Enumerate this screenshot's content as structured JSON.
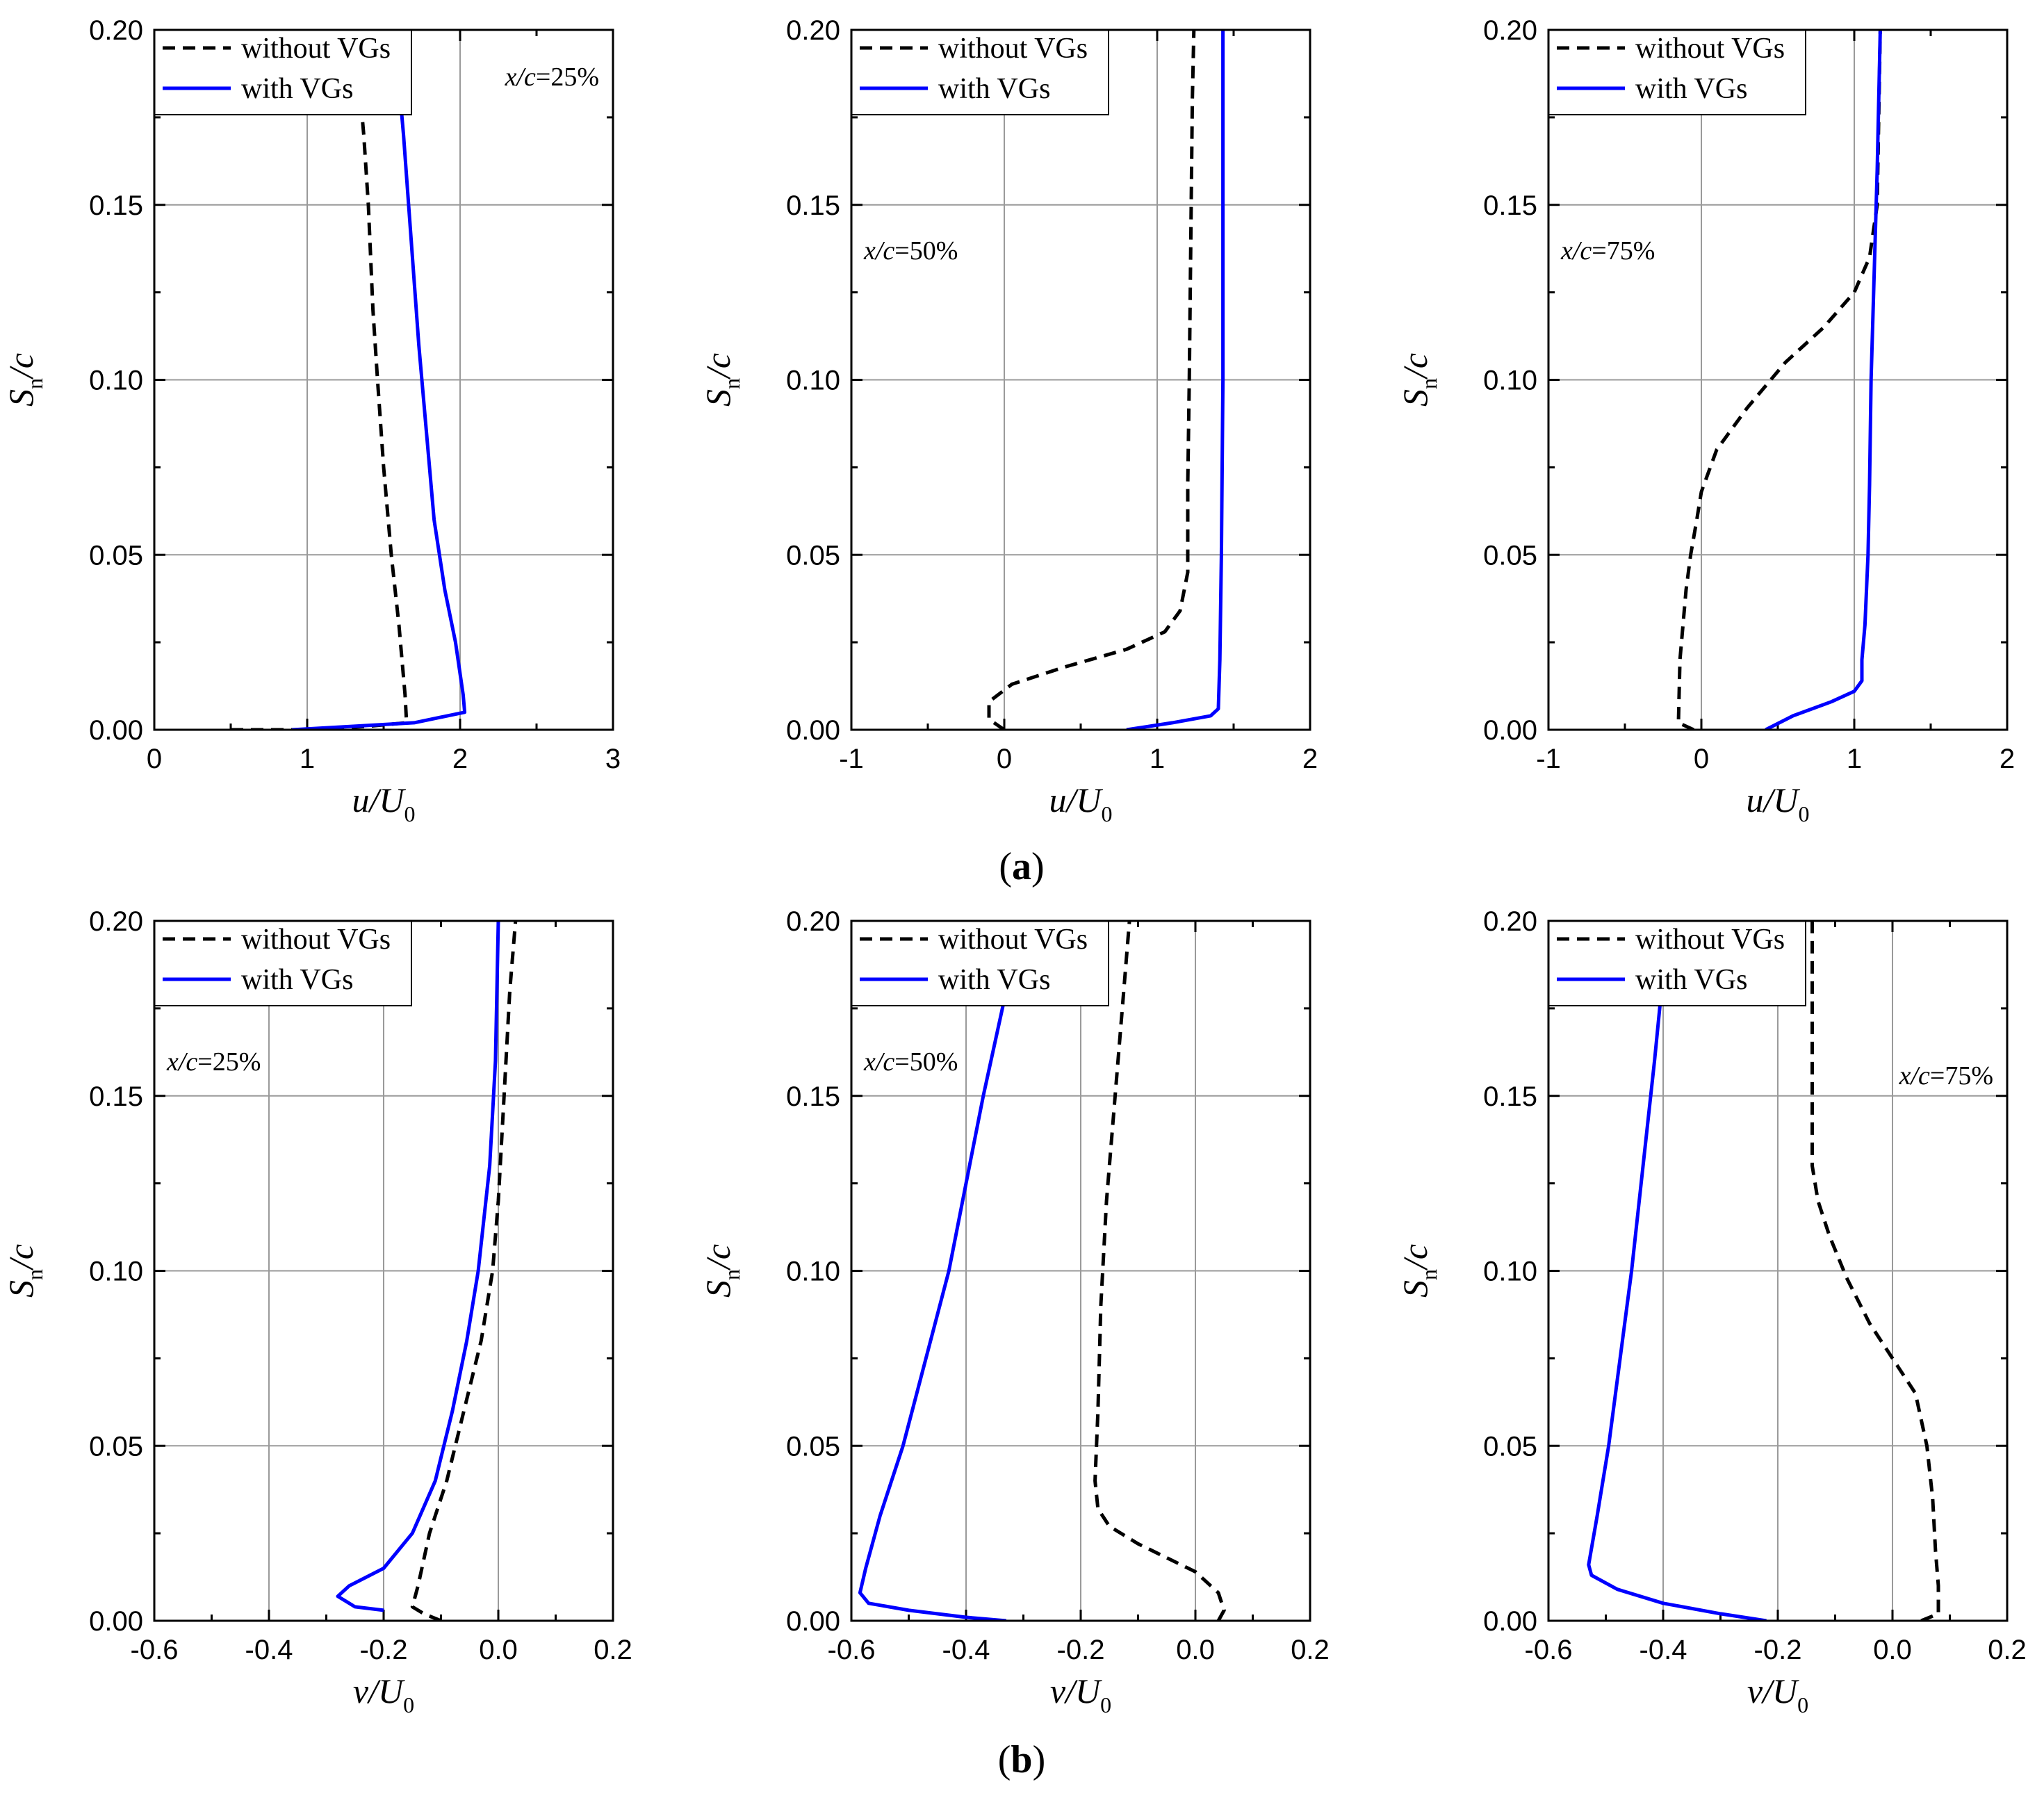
{
  "figure": {
    "row_labels": [
      {
        "open": "(",
        "letter": "a",
        "close": ")"
      },
      {
        "open": "(",
        "letter": "b",
        "close": ")"
      }
    ]
  },
  "chart_data": [
    {
      "type": "line",
      "row": "a",
      "col": 0,
      "xlabel": {
        "var": "u",
        "sep": "/U",
        "sub": "0"
      },
      "ylabel": {
        "var": "S",
        "sub": "n",
        "tail": "/c"
      },
      "xlim": [
        0,
        3
      ],
      "xticks": [
        0,
        1,
        2,
        3
      ],
      "xtick_labels": [
        "0",
        "1",
        "2",
        "3"
      ],
      "ylim": [
        0,
        0.2
      ],
      "yticks": [
        0,
        0.05,
        0.1,
        0.15,
        0.2
      ],
      "ytick_labels": [
        "0.00",
        "0.05",
        "0.10",
        "0.15",
        "0.20"
      ],
      "grid": true,
      "legend_position": "top-left",
      "annotation": {
        "var": "x/c",
        "text": "=25%",
        "position": "top-right"
      },
      "series": [
        {
          "name": "without VGs",
          "style": "dashed",
          "color": "#000000",
          "x": [
            0.5,
            1.0,
            1.4,
            1.65,
            1.64,
            1.6,
            1.55,
            1.5,
            1.46,
            1.43,
            1.4,
            1.37,
            1.34
          ],
          "y": [
            0.0,
            0.0,
            0.001,
            0.002,
            0.01,
            0.03,
            0.05,
            0.075,
            0.1,
            0.12,
            0.15,
            0.17,
            0.185
          ]
        },
        {
          "name": "with VGs",
          "style": "solid",
          "color": "#0000ff",
          "x": [
            0.9,
            1.3,
            1.7,
            2.03,
            2.02,
            1.97,
            1.9,
            1.83,
            1.78,
            1.73,
            1.68,
            1.63,
            1.6
          ],
          "y": [
            0.0,
            0.001,
            0.002,
            0.005,
            0.01,
            0.025,
            0.04,
            0.06,
            0.085,
            0.11,
            0.14,
            0.17,
            0.185
          ]
        }
      ]
    },
    {
      "type": "line",
      "row": "a",
      "col": 1,
      "xlabel": {
        "var": "u",
        "sep": "/U",
        "sub": "0"
      },
      "ylabel": {
        "var": "S",
        "sub": "n",
        "tail": "/c"
      },
      "xlim": [
        -1,
        2
      ],
      "xticks": [
        -1,
        0,
        1,
        2
      ],
      "xtick_labels": [
        "-1",
        "0",
        "1",
        "2"
      ],
      "ylim": [
        0,
        0.2
      ],
      "yticks": [
        0,
        0.05,
        0.1,
        0.15,
        0.2
      ],
      "ytick_labels": [
        "0.00",
        "0.05",
        "0.10",
        "0.15",
        "0.20"
      ],
      "grid": true,
      "legend_position": "top-left",
      "annotation": {
        "var": "x/c",
        "text": "=50%",
        "position": "upper-left"
      },
      "series": [
        {
          "name": "without VGs",
          "style": "dashed",
          "color": "#000000",
          "x": [
            0.0,
            -0.1,
            -0.1,
            0.05,
            0.4,
            0.8,
            1.05,
            1.15,
            1.2,
            1.2,
            1.21,
            1.22,
            1.23,
            1.24
          ],
          "y": [
            0.0,
            0.003,
            0.008,
            0.013,
            0.018,
            0.023,
            0.028,
            0.034,
            0.045,
            0.07,
            0.1,
            0.14,
            0.18,
            0.2
          ]
        },
        {
          "name": "with VGs",
          "style": "solid",
          "color": "#0000ff",
          "x": [
            0.8,
            1.1,
            1.35,
            1.4,
            1.41,
            1.42,
            1.43,
            1.43,
            1.43
          ],
          "y": [
            0.0,
            0.002,
            0.004,
            0.006,
            0.02,
            0.05,
            0.1,
            0.15,
            0.2
          ]
        }
      ]
    },
    {
      "type": "line",
      "row": "a",
      "col": 2,
      "xlabel": {
        "var": "u",
        "sep": "/U",
        "sub": "0"
      },
      "ylabel": {
        "var": "S",
        "sub": "n",
        "tail": "/c"
      },
      "xlim": [
        -1,
        2
      ],
      "xticks": [
        -1,
        0,
        1,
        2
      ],
      "xtick_labels": [
        "-1",
        "0",
        "1",
        "2"
      ],
      "ylim": [
        0,
        0.2
      ],
      "yticks": [
        0,
        0.05,
        0.1,
        0.15,
        0.2
      ],
      "ytick_labels": [
        "0.00",
        "0.05",
        "0.10",
        "0.15",
        "0.20"
      ],
      "grid": true,
      "legend_position": "top-left",
      "annotation": {
        "var": "x/c",
        "text": "=75%",
        "position": "upper-left"
      },
      "series": [
        {
          "name": "without VGs",
          "style": "dashed",
          "color": "#000000",
          "x": [
            -0.05,
            -0.15,
            -0.14,
            -0.1,
            -0.07,
            -0.03,
            0.0,
            0.1,
            0.3,
            0.55,
            0.8,
            1.0,
            1.1,
            1.15,
            1.17
          ],
          "y": [
            0.0,
            0.002,
            0.02,
            0.04,
            0.05,
            0.06,
            0.068,
            0.08,
            0.092,
            0.105,
            0.115,
            0.125,
            0.135,
            0.15,
            0.2
          ]
        },
        {
          "name": "with VGs",
          "style": "solid",
          "color": "#0000ff",
          "x": [
            0.42,
            0.6,
            0.85,
            1.0,
            1.05,
            1.05,
            1.07,
            1.09,
            1.1,
            1.11,
            1.13,
            1.15,
            1.17
          ],
          "y": [
            0.0,
            0.004,
            0.008,
            0.011,
            0.014,
            0.02,
            0.03,
            0.05,
            0.07,
            0.1,
            0.13,
            0.16,
            0.2
          ]
        }
      ]
    },
    {
      "type": "line",
      "row": "b",
      "col": 0,
      "xlabel": {
        "var": "v",
        "sep": "/U",
        "sub": "0"
      },
      "ylabel": {
        "var": "S",
        "sub": "n",
        "tail": "/c"
      },
      "xlim": [
        -0.6,
        0.2
      ],
      "xticks": [
        -0.6,
        -0.4,
        -0.2,
        0.0,
        0.2
      ],
      "xtick_labels": [
        "-0.6",
        "-0.4",
        "-0.2",
        "0.0",
        "0.2"
      ],
      "ylim": [
        0,
        0.2
      ],
      "yticks": [
        0,
        0.05,
        0.1,
        0.15,
        0.2
      ],
      "ytick_labels": [
        "0.00",
        "0.05",
        "0.10",
        "0.15",
        "0.20"
      ],
      "grid": true,
      "legend_position": "top-left",
      "annotation": {
        "var": "x/c",
        "text": "=25%",
        "position": "upper-left"
      },
      "series": [
        {
          "name": "without VGs",
          "style": "dashed",
          "color": "#000000",
          "x": [
            -0.1,
            -0.13,
            -0.15,
            -0.14,
            -0.12,
            -0.09,
            -0.06,
            -0.03,
            -0.01,
            0.0,
            0.01,
            0.02,
            0.03
          ],
          "y": [
            0.0,
            0.002,
            0.004,
            0.01,
            0.025,
            0.04,
            0.06,
            0.08,
            0.1,
            0.12,
            0.15,
            0.18,
            0.2
          ]
        },
        {
          "name": "with VGs",
          "style": "solid",
          "color": "#0000ff",
          "x": [
            -0.2,
            -0.25,
            -0.28,
            -0.26,
            -0.2,
            -0.15,
            -0.11,
            -0.08,
            -0.055,
            -0.035,
            -0.015,
            -0.005,
            0.0
          ],
          "y": [
            0.003,
            0.004,
            0.007,
            0.01,
            0.015,
            0.025,
            0.04,
            0.06,
            0.08,
            0.1,
            0.13,
            0.16,
            0.2
          ]
        }
      ]
    },
    {
      "type": "line",
      "row": "b",
      "col": 1,
      "xlabel": {
        "var": "v",
        "sep": "/U",
        "sub": "0"
      },
      "ylabel": {
        "var": "S",
        "sub": "n",
        "tail": "/c"
      },
      "xlim": [
        -0.6,
        0.2
      ],
      "xticks": [
        -0.6,
        -0.4,
        -0.2,
        0.0,
        0.2
      ],
      "xtick_labels": [
        "-0.6",
        "-0.4",
        "-0.2",
        "0.0",
        "0.2"
      ],
      "ylim": [
        0,
        0.2
      ],
      "yticks": [
        0,
        0.05,
        0.1,
        0.15,
        0.2
      ],
      "ytick_labels": [
        "0.00",
        "0.05",
        "0.10",
        "0.15",
        "0.20"
      ],
      "grid": true,
      "legend_position": "top-left",
      "annotation": {
        "var": "x/c",
        "text": "=50%",
        "position": "upper-left"
      },
      "series": [
        {
          "name": "without VGs",
          "style": "dashed",
          "color": "#000000",
          "x": [
            0.04,
            0.05,
            0.04,
            0.0,
            -0.05,
            -0.1,
            -0.15,
            -0.17,
            -0.175,
            -0.17,
            -0.165,
            -0.155,
            -0.14,
            -0.125,
            -0.115
          ],
          "y": [
            0.0,
            0.003,
            0.008,
            0.014,
            0.018,
            0.022,
            0.027,
            0.032,
            0.04,
            0.06,
            0.09,
            0.12,
            0.15,
            0.18,
            0.2
          ]
        },
        {
          "name": "with VGs",
          "style": "solid",
          "color": "#0000ff",
          "x": [
            -0.33,
            -0.4,
            -0.5,
            -0.57,
            -0.585,
            -0.575,
            -0.55,
            -0.51,
            -0.47,
            -0.43,
            -0.4,
            -0.37,
            -0.33
          ],
          "y": [
            0.0,
            0.001,
            0.003,
            0.005,
            0.008,
            0.015,
            0.03,
            0.05,
            0.075,
            0.1,
            0.125,
            0.15,
            0.18
          ]
        }
      ]
    },
    {
      "type": "line",
      "row": "b",
      "col": 2,
      "xlabel": {
        "var": "v",
        "sep": "/U",
        "sub": "0"
      },
      "ylabel": {
        "var": "S",
        "sub": "n",
        "tail": "/c"
      },
      "xlim": [
        -0.6,
        0.2
      ],
      "xticks": [
        -0.6,
        -0.4,
        -0.2,
        0.0,
        0.2
      ],
      "xtick_labels": [
        "-0.6",
        "-0.4",
        "-0.2",
        "0.0",
        "0.2"
      ],
      "ylim": [
        0,
        0.2
      ],
      "yticks": [
        0,
        0.05,
        0.1,
        0.15,
        0.2
      ],
      "ytick_labels": [
        "0.00",
        "0.05",
        "0.10",
        "0.15",
        "0.20"
      ],
      "grid": true,
      "legend_position": "top-left",
      "annotation": {
        "var": "x/c",
        "text": "=75%",
        "position": "top-right"
      },
      "series": [
        {
          "name": "without VGs",
          "style": "dashed",
          "color": "#000000",
          "x": [
            0.05,
            0.08,
            0.08,
            0.075,
            0.07,
            0.06,
            0.04,
            0.0,
            -0.04,
            -0.08,
            -0.11,
            -0.13,
            -0.14,
            -0.14,
            -0.14
          ],
          "y": [
            0.0,
            0.002,
            0.01,
            0.02,
            0.035,
            0.05,
            0.065,
            0.075,
            0.085,
            0.098,
            0.11,
            0.12,
            0.13,
            0.16,
            0.2
          ]
        },
        {
          "name": "with VGs",
          "style": "solid",
          "color": "#0000ff",
          "x": [
            -0.22,
            -0.3,
            -0.4,
            -0.48,
            -0.525,
            -0.53,
            -0.515,
            -0.495,
            -0.475,
            -0.455,
            -0.435,
            -0.415,
            -0.4
          ],
          "y": [
            0.0,
            0.002,
            0.005,
            0.009,
            0.013,
            0.016,
            0.03,
            0.05,
            0.075,
            0.1,
            0.13,
            0.16,
            0.185
          ]
        }
      ]
    }
  ]
}
